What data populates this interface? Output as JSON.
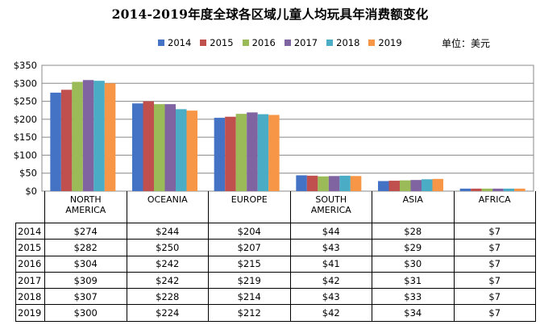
{
  "title": "2014-2019年度全球各区域儿童人均玩具年消费额变化",
  "unit": "单位：美元",
  "colors": {
    "2014": "#4472C4",
    "2015": "#C0504D",
    "2016": "#9BBB59",
    "2017": "#8064A2",
    "2018": "#4BACC6",
    "2019": "#F79646"
  },
  "chart_data": {
    "type": "bar",
    "categories": [
      "NORTH\nAMERICA",
      "OCEANIA",
      "EUROPE",
      "SOUTH\nAMERICA",
      "ASIA",
      "AFRICA"
    ],
    "y_ticks": [
      "$0",
      "$50",
      "$100",
      "$150",
      "$200",
      "$250",
      "$300",
      "$350"
    ],
    "ylim": [
      0,
      350
    ],
    "grid": true,
    "legend_position": "top",
    "series": [
      {
        "name": "2014",
        "values": [
          274,
          244,
          204,
          44,
          28,
          7
        ],
        "labels": [
          "$274",
          "$244",
          "$204",
          "$44",
          "$28",
          "$7"
        ]
      },
      {
        "name": "2015",
        "values": [
          282,
          250,
          207,
          43,
          29,
          7
        ],
        "labels": [
          "$282",
          "$250",
          "$207",
          "$43",
          "$29",
          "$7"
        ]
      },
      {
        "name": "2016",
        "values": [
          304,
          242,
          215,
          41,
          30,
          7
        ],
        "labels": [
          "$304",
          "$242",
          "$215",
          "$41",
          "$30",
          "$7"
        ]
      },
      {
        "name": "2017",
        "values": [
          309,
          242,
          219,
          42,
          31,
          7
        ],
        "labels": [
          "$309",
          "$242",
          "$219",
          "$42",
          "$31",
          "$7"
        ]
      },
      {
        "name": "2018",
        "values": [
          307,
          228,
          214,
          43,
          33,
          7
        ],
        "labels": [
          "$307",
          "$228",
          "$214",
          "$43",
          "$33",
          "$7"
        ]
      },
      {
        "name": "2019",
        "values": [
          300,
          224,
          212,
          42,
          34,
          7
        ],
        "labels": [
          "$300",
          "$224",
          "$212",
          "$42",
          "$34",
          "$7"
        ]
      }
    ]
  }
}
